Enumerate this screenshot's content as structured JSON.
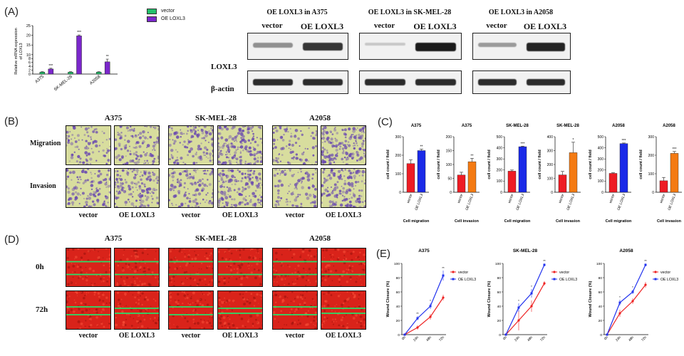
{
  "panels": {
    "a": "(A)",
    "b": "(B)",
    "c": "(C)",
    "d": "(D)",
    "e": "(E)"
  },
  "colors": {
    "vector": "#22c06a",
    "oe": "#7b27cc",
    "c_red": "#ee1c24",
    "c_blue": "#1a2ae8",
    "c_orange": "#f47a12",
    "e_red": "#ee2222",
    "e_blue": "#2233ee",
    "scratch": "#d9231a",
    "line": "#27e06a",
    "transwell_bg": "#d8dd9e",
    "cell_purple": "#6a4ab0"
  },
  "panel_a": {
    "legend": [
      "vector",
      "OE LOXL3"
    ],
    "ylabel": "Relative mRNA expression\nof LOXL3"
  },
  "blots": {
    "groups": [
      {
        "title": "OE LOXL3 in A375",
        "lanes": [
          "vector",
          "OE LOXL3"
        ]
      },
      {
        "title": "OE LOXL3 in SK-MEL-28",
        "lanes": [
          "vector",
          "OE LOXL3"
        ]
      },
      {
        "title": "OE LOXL3 in A2058",
        "lanes": [
          "vector",
          "OE LOXL3"
        ]
      }
    ],
    "row_labels": [
      "LOXL3",
      "β-actin"
    ]
  },
  "panel_b": {
    "cells": [
      "A375",
      "SK-MEL-28",
      "A2058"
    ],
    "rows": [
      "Migration",
      "Invasion"
    ],
    "cols": [
      "vector",
      "OE LOXL3",
      "vector",
      "OE LOXL3",
      "vector",
      "OE LOXL3"
    ]
  },
  "panel_c": {
    "ylabel": "cell count / field",
    "group_labels": [
      "Cell migration",
      "Cell invasion",
      "Cell migration",
      "Cell invasion",
      "Cell migration",
      "Cell invasion"
    ]
  },
  "panel_d": {
    "cells": [
      "A375",
      "SK-MEL-28",
      "A2058"
    ],
    "rows": [
      "0h",
      "72h"
    ],
    "cols": [
      "vector",
      "OE LOXL3",
      "vector",
      "OE LOXL3",
      "vector",
      "OE LOXL3"
    ]
  },
  "panel_e": {
    "legend": [
      "vector",
      "OE LOXL3"
    ],
    "ylabel": "Wound Closure (%)"
  },
  "chart_data": [
    {
      "id": "A",
      "type": "bar",
      "categories": [
        "A375",
        "SK-MEL-28",
        "A2058"
      ],
      "series": [
        {
          "name": "vector",
          "values": [
            1,
            1,
            1
          ],
          "err": [
            0.2,
            0.2,
            0.2
          ]
        },
        {
          "name": "OE LOXL3",
          "values": [
            2.6,
            19.7,
            6.3
          ],
          "err": [
            0.4,
            0.5,
            1.4
          ]
        }
      ],
      "sig": [
        "***",
        "***",
        "**"
      ],
      "ylim": [
        0,
        25
      ],
      "yticks": [
        0,
        2,
        4,
        6,
        8,
        10,
        15,
        20,
        25
      ],
      "ytick_labels": [
        "0",
        "2",
        "4",
        "6",
        "8",
        "10",
        "15",
        "20",
        "25"
      ]
    },
    {
      "id": "C1",
      "type": "bar",
      "title": "A375",
      "categories": [
        "vector",
        "OE LOXL3"
      ],
      "values": [
        155,
        225
      ],
      "err": [
        20,
        8
      ],
      "sig": "**",
      "ylim": [
        0,
        300
      ],
      "yticks": [
        0,
        100,
        200,
        300
      ],
      "colors": [
        "#ee1c24",
        "#1a2ae8"
      ],
      "group": "Cell migration"
    },
    {
      "id": "C2",
      "type": "bar",
      "title": "A375",
      "categories": [
        "vector",
        "OE LOXL3"
      ],
      "values": [
        62,
        110
      ],
      "err": [
        10,
        12
      ],
      "sig": "**",
      "ylim": [
        0,
        200
      ],
      "yticks": [
        0,
        50,
        100,
        150,
        200
      ],
      "colors": [
        "#ee1c24",
        "#f47a12"
      ],
      "group": "Cell invasion"
    },
    {
      "id": "C3",
      "type": "bar",
      "title": "SK-MEL-28",
      "categories": [
        "vector",
        "OE LOXL3"
      ],
      "values": [
        190,
        410
      ],
      "err": [
        10,
        5
      ],
      "sig": "***",
      "ylim": [
        0,
        500
      ],
      "yticks": [
        0,
        100,
        200,
        300,
        400,
        500
      ],
      "colors": [
        "#ee1c24",
        "#1a2ae8"
      ],
      "group": "Cell migration"
    },
    {
      "id": "C4",
      "type": "bar",
      "title": "SK-MEL-28",
      "categories": [
        "vector",
        "OE LOXL3"
      ],
      "values": [
        125,
        285
      ],
      "err": [
        25,
        75
      ],
      "sig": "*",
      "ylim": [
        0,
        400
      ],
      "yticks": [
        0,
        100,
        200,
        300,
        400
      ],
      "colors": [
        "#ee1c24",
        "#f47a12"
      ],
      "group": "Cell invasion"
    },
    {
      "id": "C5",
      "type": "bar",
      "title": "A2058",
      "categories": [
        "vector",
        "OE LOXL3"
      ],
      "values": [
        170,
        438
      ],
      "err": [
        5,
        5
      ],
      "sig": "***",
      "ylim": [
        0,
        500
      ],
      "yticks": [
        0,
        100,
        200,
        300,
        400,
        500
      ],
      "colors": [
        "#ee1c24",
        "#1a2ae8"
      ],
      "group": "Cell migration"
    },
    {
      "id": "C6",
      "type": "bar",
      "title": "A2058",
      "categories": [
        "vector",
        "OE LOXL3"
      ],
      "values": [
        62,
        210
      ],
      "err": [
        18,
        10
      ],
      "sig": "***",
      "ylim": [
        0,
        300
      ],
      "yticks": [
        0,
        100,
        200,
        300
      ],
      "colors": [
        "#ee1c24",
        "#f47a12"
      ],
      "group": "Cell invasion"
    },
    {
      "id": "E1",
      "type": "line",
      "title": "A375",
      "x": [
        "0h",
        "24h",
        "48h",
        "72h"
      ],
      "series": [
        {
          "name": "vector",
          "values": [
            0,
            10,
            25,
            52
          ],
          "err": [
            0,
            3,
            4,
            4
          ]
        },
        {
          "name": "OE LOXL3",
          "values": [
            0,
            23,
            40,
            83
          ],
          "err": [
            0,
            3,
            4,
            7
          ]
        }
      ],
      "sig": [
        "",
        "**",
        "*",
        "**"
      ],
      "ylim": [
        0,
        100
      ],
      "yticks": [
        0,
        20,
        40,
        60,
        80,
        100
      ]
    },
    {
      "id": "E2",
      "type": "line",
      "title": "SK-MEL-28",
      "x": [
        "0h",
        "24h",
        "48h",
        "72h"
      ],
      "series": [
        {
          "name": "vector",
          "values": [
            0,
            20,
            40,
            72
          ],
          "err": [
            0,
            14,
            8,
            3
          ]
        },
        {
          "name": "OE LOXL3",
          "values": [
            0,
            38,
            58,
            98
          ],
          "err": [
            0,
            6,
            6,
            2
          ]
        }
      ],
      "sig": [
        "",
        "*",
        "*",
        "**"
      ],
      "ylim": [
        0,
        100
      ],
      "yticks": [
        0,
        20,
        40,
        60,
        80,
        100
      ]
    },
    {
      "id": "E3",
      "type": "line",
      "title": "A2058",
      "x": [
        "0h",
        "24h",
        "48h",
        "72h"
      ],
      "series": [
        {
          "name": "vector",
          "values": [
            0,
            30,
            47,
            70
          ],
          "err": [
            0,
            5,
            4,
            4
          ]
        },
        {
          "name": "OE LOXL3",
          "values": [
            0,
            45,
            60,
            98
          ],
          "err": [
            0,
            4,
            3,
            2
          ]
        }
      ],
      "sig": [
        "",
        "*",
        "*",
        "**"
      ],
      "ylim": [
        0,
        100
      ],
      "yticks": [
        0,
        20,
        40,
        60,
        80,
        100
      ]
    }
  ]
}
